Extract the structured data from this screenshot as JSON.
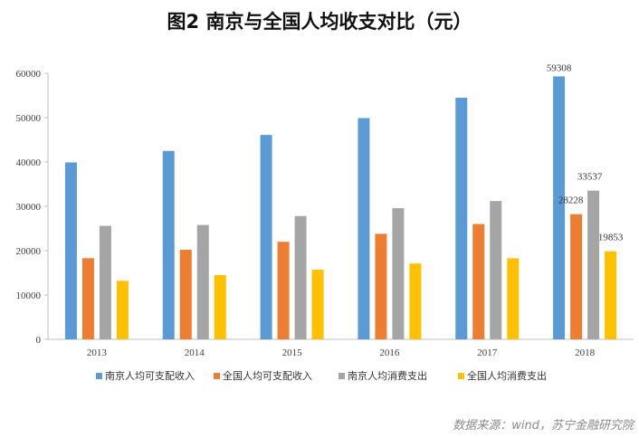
{
  "chart_data": {
    "type": "bar",
    "title": "图2 南京与全国人均收支对比（元）",
    "categories": [
      "2013",
      "2014",
      "2015",
      "2016",
      "2017",
      "2018"
    ],
    "ylim": [
      0,
      60000
    ],
    "yticks": [
      0,
      10000,
      20000,
      30000,
      40000,
      50000,
      60000
    ],
    "grid": false,
    "legend_position": "bottom",
    "series": [
      {
        "name": "南京人均可支配收入",
        "color": "#5B9BD5",
        "values": [
          39900,
          42500,
          46100,
          49900,
          54500,
          59308
        ]
      },
      {
        "name": "全国人均可支配收入",
        "color": "#ED7D31",
        "values": [
          18300,
          20200,
          22000,
          23800,
          26000,
          28228
        ]
      },
      {
        "name": "南京人均消费支出",
        "color": "#A5A5A5",
        "values": [
          25600,
          25800,
          27800,
          29600,
          31200,
          33537
        ]
      },
      {
        "name": "全国人均消费支出",
        "color": "#FFC000",
        "values": [
          13200,
          14500,
          15700,
          17100,
          18300,
          19853
        ]
      }
    ],
    "data_labels": [
      {
        "series": 0,
        "category": 5,
        "text": "59308"
      },
      {
        "series": 1,
        "category": 5,
        "text": "28228"
      },
      {
        "series": 2,
        "category": 5,
        "text": "33537"
      },
      {
        "series": 3,
        "category": 5,
        "text": "19853"
      }
    ],
    "source": "数据来源：wind，苏宁金融研究院"
  }
}
